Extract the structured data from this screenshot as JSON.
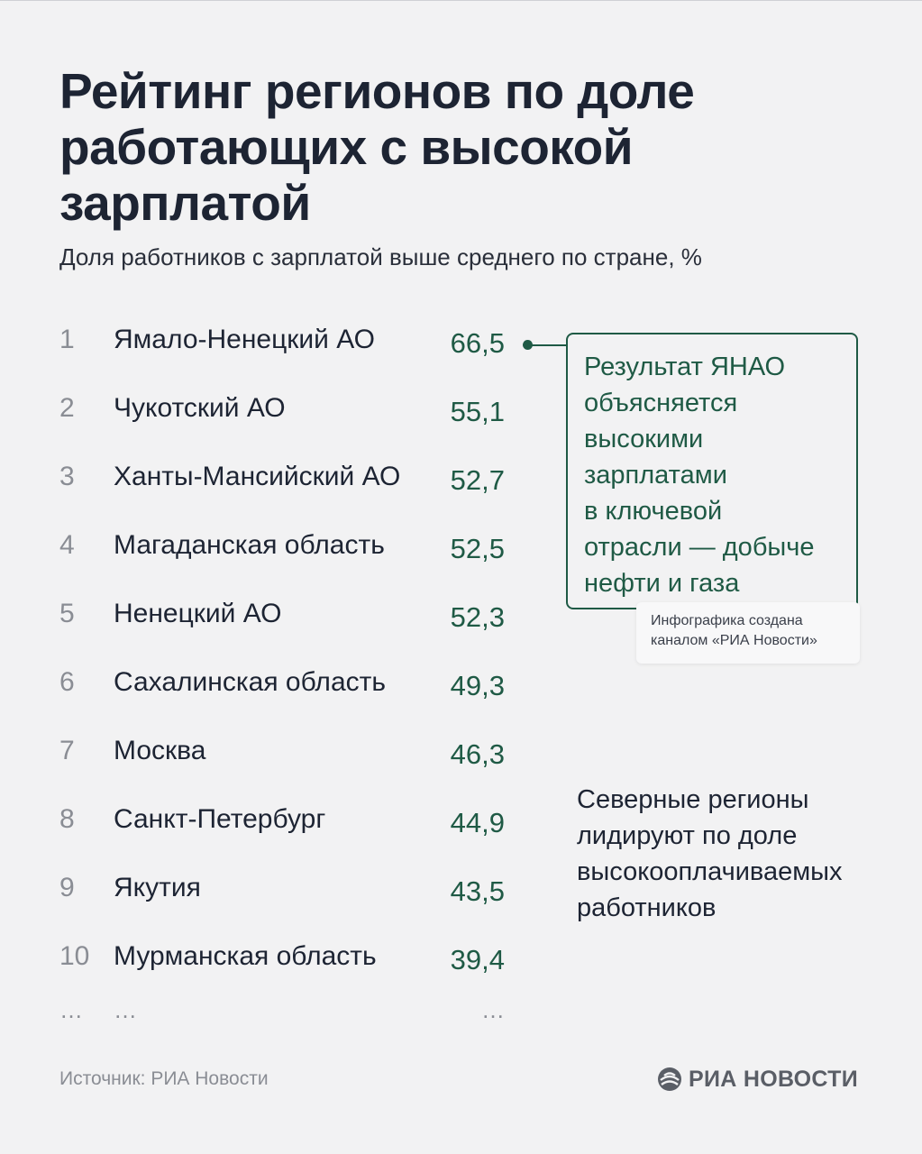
{
  "title": "Рейтинг регионов по доле работающих с высокой зарплатой",
  "subtitle": "Доля работников с зарплатой выше среднего по стране, %",
  "chart_data": {
    "type": "table",
    "columns": [
      "",
      "",
      ""
    ],
    "rows": [
      {
        "rank": "1",
        "region": "Ямало-Ненецкий АО",
        "value": 66.5,
        "value_label": "66,5"
      },
      {
        "rank": "2",
        "region": "Чукотский АО",
        "value": 55.1,
        "value_label": "55,1"
      },
      {
        "rank": "3",
        "region": "Ханты-Мансийский АО",
        "value": 52.7,
        "value_label": "52,7"
      },
      {
        "rank": "4",
        "region": "Магаданская область",
        "value": 52.5,
        "value_label": "52,5"
      },
      {
        "rank": "5",
        "region": "Ненецкий АО",
        "value": 52.3,
        "value_label": "52,3"
      },
      {
        "rank": "6",
        "region": "Сахалинская область",
        "value": 49.3,
        "value_label": "49,3"
      },
      {
        "rank": "7",
        "region": "Москва",
        "value": 46.3,
        "value_label": "46,3"
      },
      {
        "rank": "8",
        "region": "Санкт-Петербург",
        "value": 44.9,
        "value_label": "44,9"
      },
      {
        "rank": "9",
        "region": "Якутия",
        "value": 43.5,
        "value_label": "43,5"
      },
      {
        "rank": "10",
        "region": "Мурманская область",
        "value": 39.4,
        "value_label": "39,4"
      }
    ],
    "ellipsis": "…",
    "annotations": [
      "Результат ЯНАО объясняется высокими зарплатами в ключевой отрасли — добыче нефти и газа",
      "Северные регионы лидируют по доле высокооплачиваемых работников"
    ],
    "colors": {
      "value": "#1f5a45",
      "accent": "#1f5a45",
      "text": "#1d2433",
      "muted": "#8a8d94",
      "background": "#f2f2f3"
    }
  },
  "callout": {
    "lines": [
      "Результат ЯНАО",
      "объясняется",
      "высокими",
      "зарплатами",
      "в ключевой",
      "отрасли — добыче",
      "нефти и газа"
    ]
  },
  "credit": {
    "line1": "Инфографика создана",
    "line2": "каналом «РИА Новости»"
  },
  "note": "Северные регионы лидируют по доле высокооплачиваемых работников",
  "source": "Источник: РИА Новости",
  "logo": {
    "text": "РИА НОВОСТИ",
    "icon": "ria-logo-icon"
  }
}
